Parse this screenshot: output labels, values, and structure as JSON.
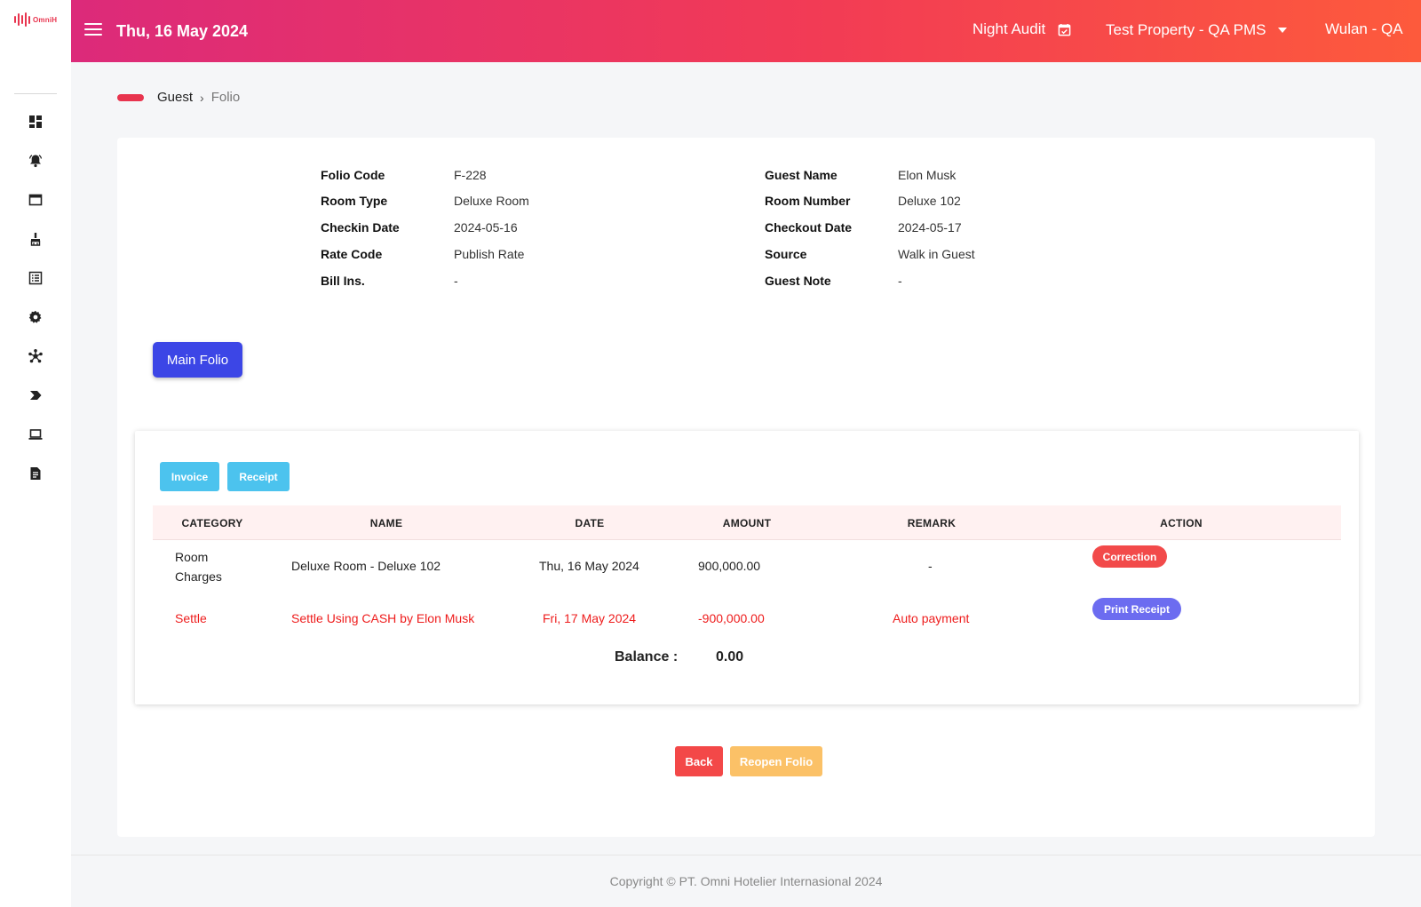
{
  "logo": {
    "text": "OmniH"
  },
  "header": {
    "date": "Thu, 16 May 2024",
    "night_audit": "Night Audit",
    "property": "Test Property - QA PMS",
    "user": "Wulan - QA"
  },
  "sidebar": {
    "icons": [
      "dashboard-icon",
      "bell-icon",
      "window-icon",
      "housekeeping-icon",
      "list-icon",
      "gear-icon",
      "network-icon",
      "chevron-tag-icon",
      "laptop-icon",
      "report-icon"
    ]
  },
  "breadcrumb": {
    "parent": "Guest",
    "current": "Folio",
    "separator": "›"
  },
  "folio": {
    "left": [
      {
        "label": "Folio Code",
        "value": "F-228"
      },
      {
        "label": "Room Type",
        "value": "Deluxe Room"
      },
      {
        "label": "Checkin Date",
        "value": "2024-05-16"
      },
      {
        "label": "Rate Code",
        "value": "Publish Rate"
      },
      {
        "label": "Bill Ins.",
        "value": "-"
      }
    ],
    "right": [
      {
        "label": "Guest Name",
        "value": "Elon Musk"
      },
      {
        "label": "Room Number",
        "value": "Deluxe 102"
      },
      {
        "label": "Checkout Date",
        "value": "2024-05-17"
      },
      {
        "label": "Source",
        "value": "Walk in Guest"
      },
      {
        "label": "Guest Note",
        "value": "-"
      }
    ]
  },
  "main_folio_label": "Main Folio",
  "buttons": {
    "invoice": "Invoice",
    "receipt": "Receipt",
    "back": "Back",
    "reopen": "Reopen Folio"
  },
  "table": {
    "headers": [
      "CATEGORY",
      "NAME",
      "DATE",
      "AMOUNT",
      "REMARK",
      "ACTION"
    ],
    "rows": [
      {
        "category": "Room Charges",
        "name": "Deluxe Room - Deluxe 102",
        "date": "Thu, 16 May 2024",
        "amount": "900,000.00",
        "remark": "-",
        "action": "Correction"
      },
      {
        "category": "Settle",
        "name": "Settle Using CASH by Elon Musk",
        "date": "Fri, 17 May 2024",
        "amount": "-900,000.00",
        "remark": "Auto payment",
        "action": "Print Receipt"
      }
    ],
    "balance_label": "Balance :",
    "balance_value": "0.00"
  },
  "footer": "Copyright © PT. Omni Hotelier Internasional 2024",
  "colors": {
    "accent_start": "#dc2a7a",
    "accent_end": "#fd5a3c",
    "primary": "#3c46e6",
    "info": "#4cc3ee",
    "danger": "#f24a4a",
    "warning": "#fbb74d",
    "settle_text": "#ee1c1c"
  }
}
